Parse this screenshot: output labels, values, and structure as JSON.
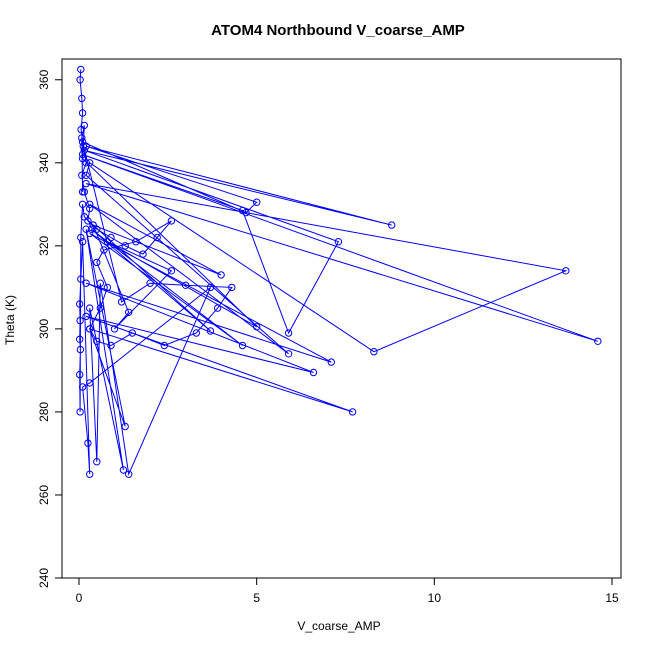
{
  "chart_data": {
    "type": "line",
    "title": "ATOM4 Northbound V_coarse_AMP",
    "xlabel": "V_coarse_AMP",
    "ylabel": "Theta (K)",
    "xlim": [
      0,
      15
    ],
    "ylim": [
      240,
      365
    ],
    "xticks": [
      0,
      5,
      10,
      15
    ],
    "yticks": [
      240,
      260,
      280,
      300,
      320,
      340,
      360
    ],
    "grid": false,
    "legend": "none",
    "series": [
      {
        "color": "#0000ff",
        "marker": "open-circle",
        "points": [
          {
            "x": 0.05,
            "y": 362.5
          },
          {
            "x": 0.03,
            "y": 360
          },
          {
            "x": 0.08,
            "y": 355.5
          },
          {
            "x": 0.1,
            "y": 352
          },
          {
            "x": 0.06,
            "y": 348
          },
          {
            "x": 0.12,
            "y": 344
          },
          {
            "x": 0.2,
            "y": 340
          },
          {
            "x": 0.08,
            "y": 337
          },
          {
            "x": 0.15,
            "y": 333
          },
          {
            "x": 0.3,
            "y": 329
          },
          {
            "x": 0.25,
            "y": 326
          },
          {
            "x": 0.5,
            "y": 324
          },
          {
            "x": 0.9,
            "y": 322
          },
          {
            "x": 1.3,
            "y": 320
          },
          {
            "x": 1.8,
            "y": 318
          },
          {
            "x": 2.2,
            "y": 322
          },
          {
            "x": 2.6,
            "y": 326
          },
          {
            "x": 1.6,
            "y": 321
          },
          {
            "x": 0.7,
            "y": 319
          },
          {
            "x": 0.5,
            "y": 316
          },
          {
            "x": 0.8,
            "y": 310
          },
          {
            "x": 0.6,
            "y": 305
          },
          {
            "x": 0.3,
            "y": 300
          },
          {
            "x": 0.5,
            "y": 297
          },
          {
            "x": 0.9,
            "y": 296
          },
          {
            "x": 1.5,
            "y": 299
          },
          {
            "x": 2.4,
            "y": 296
          },
          {
            "x": 3.3,
            "y": 299
          },
          {
            "x": 3.9,
            "y": 305
          },
          {
            "x": 4.3,
            "y": 310
          },
          {
            "x": 3.0,
            "y": 310.5
          },
          {
            "x": 2.0,
            "y": 311
          },
          {
            "x": 1.2,
            "y": 306.5
          },
          {
            "x": 0.1,
            "y": 345
          },
          {
            "x": 4.7,
            "y": 328
          },
          {
            "x": 5.0,
            "y": 330.5
          },
          {
            "x": 0.2,
            "y": 344
          },
          {
            "x": 8.8,
            "y": 325
          },
          {
            "x": 0.15,
            "y": 343
          },
          {
            "x": 7.3,
            "y": 321
          },
          {
            "x": 5.9,
            "y": 299
          },
          {
            "x": 4.6,
            "y": 328.5
          },
          {
            "x": 0.1,
            "y": 342
          },
          {
            "x": 14.6,
            "y": 297
          },
          {
            "x": 0.2,
            "y": 335
          },
          {
            "x": 13.7,
            "y": 314
          },
          {
            "x": 8.3,
            "y": 294.5
          },
          {
            "x": 0.3,
            "y": 340
          },
          {
            "x": 0.2,
            "y": 337
          },
          {
            "x": 5.9,
            "y": 294
          },
          {
            "x": 0.3,
            "y": 330
          },
          {
            "x": 4.0,
            "y": 313
          },
          {
            "x": 0.4,
            "y": 325
          },
          {
            "x": 3.7,
            "y": 299.5
          },
          {
            "x": 0.35,
            "y": 324
          },
          {
            "x": 4.6,
            "y": 296
          },
          {
            "x": 0.3,
            "y": 323
          },
          {
            "x": 7.1,
            "y": 292
          },
          {
            "x": 0.2,
            "y": 311
          },
          {
            "x": 6.6,
            "y": 289.5
          },
          {
            "x": 0.2,
            "y": 303
          },
          {
            "x": 7.7,
            "y": 280
          },
          {
            "x": 0.3,
            "y": 300
          },
          {
            "x": 1.3,
            "y": 276.5
          },
          {
            "x": 0.2,
            "y": 324
          },
          {
            "x": 1.25,
            "y": 266
          },
          {
            "x": 0.3,
            "y": 305
          },
          {
            "x": 0.5,
            "y": 268
          },
          {
            "x": 0.6,
            "y": 311
          },
          {
            "x": 1.4,
            "y": 265
          },
          {
            "x": 3.7,
            "y": 310
          },
          {
            "x": 0.3,
            "y": 287
          },
          {
            "x": 0.1,
            "y": 286
          },
          {
            "x": 0.25,
            "y": 272.5
          },
          {
            "x": 0.3,
            "y": 265
          },
          {
            "x": 0.1,
            "y": 321
          },
          {
            "x": 0.05,
            "y": 312
          },
          {
            "x": 0.02,
            "y": 306
          },
          {
            "x": 0.03,
            "y": 302
          },
          {
            "x": 0.02,
            "y": 297.5
          },
          {
            "x": 0.04,
            "y": 295
          },
          {
            "x": 0.02,
            "y": 289
          },
          {
            "x": 0.03,
            "y": 280
          },
          {
            "x": 0.05,
            "y": 322
          },
          {
            "x": 0.1,
            "y": 330
          },
          {
            "x": 0.15,
            "y": 327
          },
          {
            "x": 0.4,
            "y": 325
          },
          {
            "x": 1.4,
            "y": 304
          },
          {
            "x": 1.0,
            "y": 300
          },
          {
            "x": 2.6,
            "y": 314
          },
          {
            "x": 0.8,
            "y": 321
          },
          {
            "x": 5.0,
            "y": 300.5
          },
          {
            "x": 0.1,
            "y": 341
          },
          {
            "x": 0.15,
            "y": 349
          },
          {
            "x": 0.08,
            "y": 346
          },
          {
            "x": 0.1,
            "y": 333
          }
        ]
      }
    ]
  }
}
